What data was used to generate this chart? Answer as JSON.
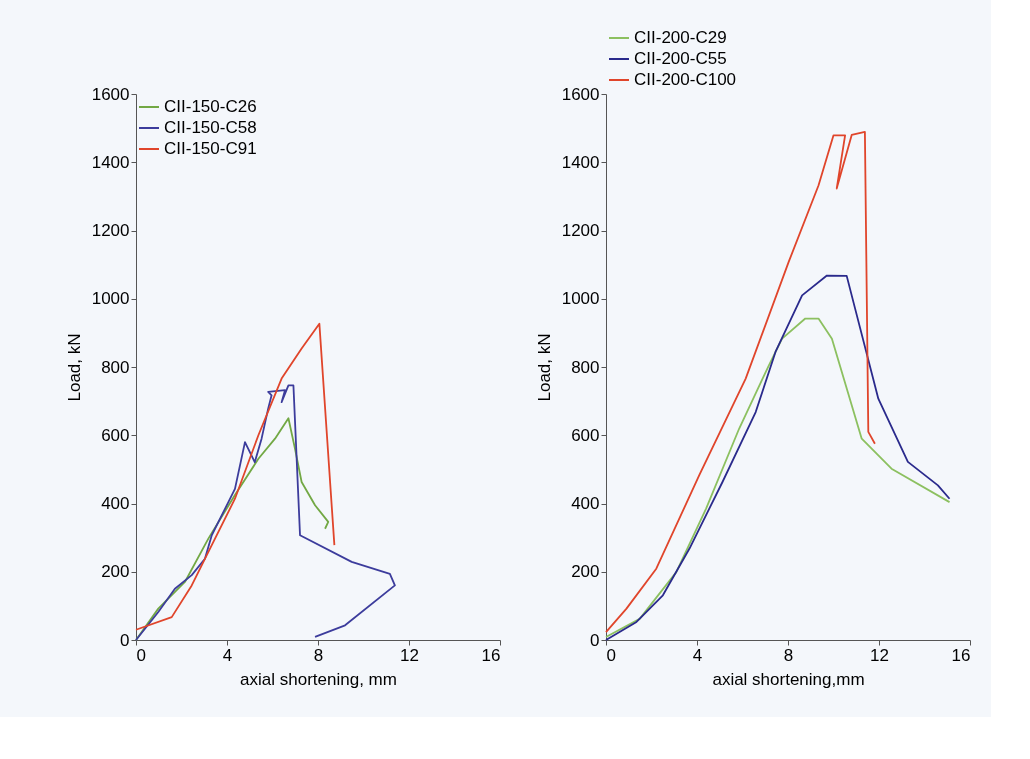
{
  "chart_data": [
    {
      "type": "line",
      "xlabel": "axial shortening, mm",
      "ylabel": "Load, kN",
      "xlim": [
        0,
        16
      ],
      "xticks": [
        0,
        4,
        8,
        12,
        16
      ],
      "ylim": [
        0,
        1600
      ],
      "yticks": [
        0,
        200,
        400,
        600,
        800,
        1000,
        1200,
        1400,
        1600
      ],
      "grid": false,
      "legend": "top left",
      "line_style": "solid",
      "marker": "none",
      "series": [
        {
          "name": "CII-150-C26",
          "color": "#72a844",
          "x": [
            0,
            0.98,
            2.15,
            3.18,
            4.35,
            5.38,
            6.11,
            6.7,
            6.99,
            7.28,
            7.87,
            8.45,
            8.31
          ],
          "values": [
            0,
            92,
            170,
            297,
            425,
            531,
            590,
            650,
            560,
            463,
            395,
            346,
            326
          ]
        },
        {
          "name": "CII-150-C58",
          "color": "#3c3c9c",
          "x": [
            0,
            0.98,
            1.71,
            2.45,
            3.03,
            3.33,
            4.06,
            4.35,
            4.79,
            5.22,
            5.52,
            5.81,
            5.96,
            5.81,
            6.55,
            6.4,
            6.7,
            6.92,
            7.21,
            9.48,
            11.16,
            11.38,
            9.19,
            7.87
          ],
          "values": [
            0,
            82,
            150,
            190,
            238,
            307,
            404,
            443,
            580,
            521,
            590,
            678,
            717,
            727,
            732,
            697,
            746,
            746,
            307,
            229,
            194,
            160,
            43,
            9
          ]
        },
        {
          "name": "CII-150-C91",
          "color": "#e0452b",
          "x": [
            0,
            1.57,
            2.45,
            3.33,
            4.35,
            5.38,
            6.4,
            7.28,
            8.06,
            8.72
          ],
          "values": [
            30,
            67,
            160,
            278,
            414,
            600,
            766,
            854,
            927,
            278
          ]
        }
      ]
    },
    {
      "type": "line",
      "xlabel": "axial shortening,mm",
      "ylabel": "Load, kN",
      "xlim": [
        0,
        16
      ],
      "xticks": [
        0,
        4,
        8,
        12,
        16
      ],
      "ylim": [
        0,
        1600
      ],
      "yticks": [
        0,
        200,
        400,
        600,
        800,
        1000,
        1200,
        1400,
        1600
      ],
      "grid": false,
      "legend": "top",
      "line_style": "solid",
      "marker": "none",
      "series": [
        {
          "name": "CII-200-C29",
          "color": "#8cc060",
          "x": [
            0,
            1.48,
            3.09,
            4.4,
            5.85,
            7.16,
            7.74,
            8.76,
            9.34,
            9.93,
            11.24,
            12.55,
            15.1
          ],
          "values": [
            9,
            62,
            199,
            385,
            619,
            805,
            883,
            942,
            942,
            883,
            590,
            502,
            404
          ]
        },
        {
          "name": "CII-200-C55",
          "color": "#2a2a8c",
          "x": [
            0,
            1.34,
            2.5,
            3.67,
            5.12,
            6.58,
            7.45,
            8.62,
            9.71,
            10.58,
            10.95,
            11.97,
            13.27,
            14.59,
            15.1
          ],
          "values": [
            0,
            53,
            131,
            268,
            463,
            668,
            844,
            1010,
            1068,
            1067,
            971,
            707,
            522,
            453,
            414
          ]
        },
        {
          "name": "CII-200-C100",
          "color": "#e0452b",
          "x": [
            0,
            0.9,
            2.21,
            4.1,
            6.14,
            8.03,
            9.34,
            10.0,
            10.51,
            10.14,
            10.8,
            11.38,
            11.53,
            11.82
          ],
          "values": [
            23,
            92,
            209,
            483,
            766,
            1108,
            1332,
            1479,
            1479,
            1323,
            1480,
            1489,
            610,
            575
          ]
        }
      ]
    }
  ]
}
